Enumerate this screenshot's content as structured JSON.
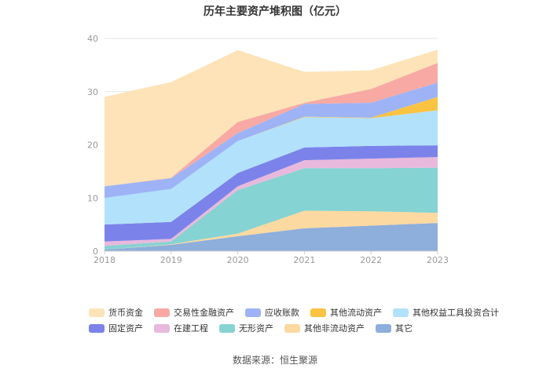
{
  "chart_data": {
    "type": "area",
    "stacked": true,
    "title": "历年主要资产堆积图（亿元）",
    "xlabel": "",
    "ylabel": "",
    "categories": [
      "2018",
      "2019",
      "2020",
      "2021",
      "2022",
      "2023"
    ],
    "ylim": [
      0,
      40
    ],
    "yticks": [
      "0",
      "10",
      "20",
      "30",
      "40"
    ],
    "grid": true,
    "legend_position": "bottom",
    "series": [
      {
        "name": "其它",
        "color": "#8eaedb",
        "values": [
          0.3,
          1.2,
          2.8,
          4.3,
          4.8,
          5.3
        ]
      },
      {
        "name": "其他非流动资产",
        "color": "#fcd9a0",
        "values": [
          0.0,
          0.1,
          0.5,
          3.3,
          2.7,
          1.9
        ]
      },
      {
        "name": "无形资产",
        "color": "#85d3d2",
        "values": [
          0.7,
          0.5,
          8.2,
          8.0,
          8.1,
          8.5
        ]
      },
      {
        "name": "在建工程",
        "color": "#e8b9dc",
        "values": [
          0.8,
          0.5,
          0.7,
          1.5,
          1.8,
          2.0
        ]
      },
      {
        "name": "固定资产",
        "color": "#7b83ea",
        "values": [
          3.2,
          3.2,
          2.5,
          2.4,
          2.4,
          2.2
        ]
      },
      {
        "name": "其他权益工具投资合计",
        "color": "#b2e1fb",
        "values": [
          5.0,
          6.2,
          6.0,
          5.7,
          5.2,
          6.6
        ]
      },
      {
        "name": "其他流动资产",
        "color": "#fbc342",
        "values": [
          0.0,
          0.0,
          0.0,
          0.1,
          0.1,
          2.5
        ]
      },
      {
        "name": "应收账款",
        "color": "#9db3f6",
        "values": [
          2.2,
          2.0,
          1.5,
          2.4,
          2.8,
          2.7
        ]
      },
      {
        "name": "交易性金融资产",
        "color": "#f8a9a3",
        "values": [
          0.0,
          0.1,
          2.1,
          0.2,
          2.6,
          3.7
        ]
      },
      {
        "name": "货币资金",
        "color": "#fde3b7",
        "values": [
          16.8,
          18.0,
          13.5,
          5.8,
          3.5,
          2.5
        ]
      }
    ]
  },
  "legend": {
    "rows": [
      [
        {
          "label": "货币资金",
          "color": "#fde3b7"
        },
        {
          "label": "交易性金融资产",
          "color": "#f8a9a3"
        },
        {
          "label": "应收账款",
          "color": "#9db3f6"
        },
        {
          "label": "其他流动资产",
          "color": "#fbc342"
        },
        {
          "label": "其他权益工具投资合计",
          "color": "#b2e1fb"
        }
      ],
      [
        {
          "label": "固定资产",
          "color": "#7b83ea"
        },
        {
          "label": "在建工程",
          "color": "#e8b9dc"
        },
        {
          "label": "无形资产",
          "color": "#85d3d2"
        },
        {
          "label": "其他非流动资产",
          "color": "#fcd9a0"
        },
        {
          "label": "其它",
          "color": "#8eaedb"
        }
      ]
    ]
  },
  "source": "数据来源：恒生聚源"
}
